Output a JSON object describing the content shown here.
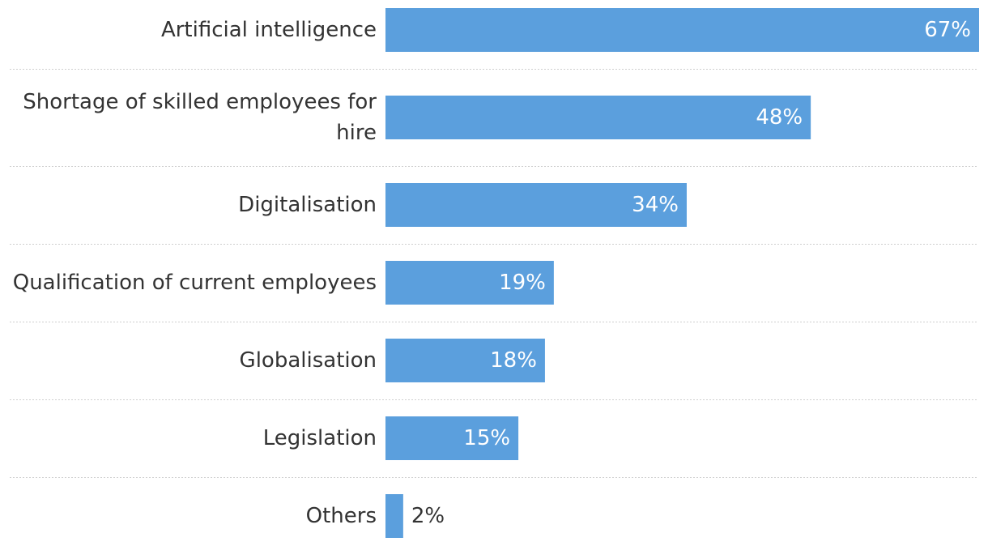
{
  "chart_data": {
    "type": "bar",
    "orientation": "horizontal",
    "title": "",
    "xlabel": "",
    "ylabel": "",
    "unit": "%",
    "categories": [
      "Artificial intelligence",
      "Shortage of skilled employees for hire",
      "Digitalisation",
      "Qualification of current employees",
      "Globalisation",
      "Legislation",
      "Others"
    ],
    "category_lines": [
      [
        "Artificial intelligence"
      ],
      [
        "Shortage of skilled employees for",
        "hire"
      ],
      [
        "Digitalisation"
      ],
      [
        "Qualification of current employees"
      ],
      [
        "Globalisation"
      ],
      [
        "Legislation"
      ],
      [
        "Others"
      ]
    ],
    "values": [
      67,
      48,
      34,
      19,
      18,
      15,
      2
    ],
    "value_labels": [
      "67%",
      "48%",
      "34%",
      "19%",
      "18%",
      "15%",
      "2%"
    ],
    "xlim": [
      0,
      67
    ],
    "bar_color": "#5b9fdd",
    "label_inside_color": "#ffffff",
    "label_outside_color": "#333333",
    "grid": "dotted row separators"
  }
}
